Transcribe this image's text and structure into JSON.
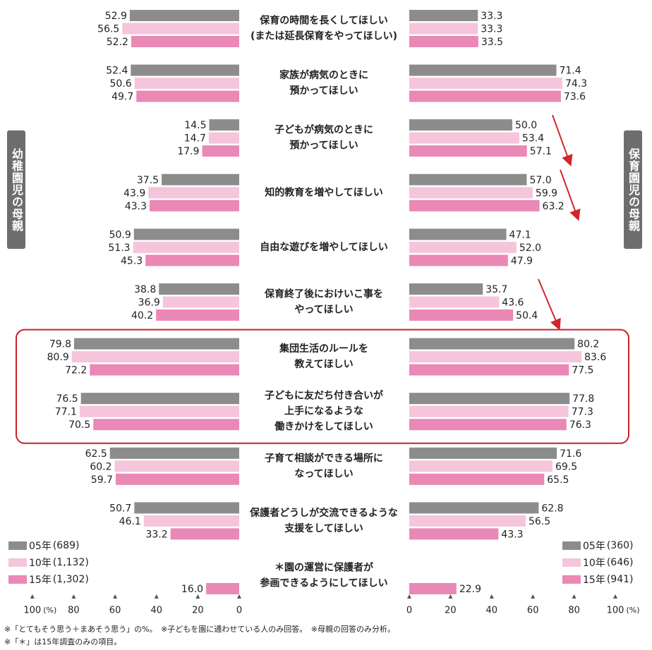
{
  "chart_data": {
    "type": "bar",
    "orientation": "horizontal",
    "layout": "back-to-back",
    "panels": [
      {
        "name": "幼稚園児の母親",
        "side": "left"
      },
      {
        "name": "保育園児の母親",
        "side": "right"
      }
    ],
    "series_names": [
      "05年",
      "10年",
      "15年"
    ],
    "colors": {
      "05年": "#8c8c8c",
      "10年": "#f5c5dc",
      "15年": "#ea88b6"
    },
    "categories": [
      {
        "label": [
          "保育の時間を長くしてほしい",
          "(または延長保育をやってほしい)"
        ],
        "left": [
          "52.9",
          "56.5",
          "52.2"
        ],
        "right": [
          "33.3",
          "33.3",
          "33.5"
        ]
      },
      {
        "label": [
          "家族が病気のときに",
          "預かってほしい"
        ],
        "left": [
          "52.4",
          "50.6",
          "49.7"
        ],
        "right": [
          "71.4",
          "74.3",
          "73.6"
        ]
      },
      {
        "label": [
          "子どもが病気のときに",
          "預かってほしい"
        ],
        "left": [
          "14.5",
          "14.7",
          "17.9"
        ],
        "right": [
          "50.0",
          "53.4",
          "57.1"
        ]
      },
      {
        "label": [
          "知的教育を増やしてほしい"
        ],
        "left": [
          "37.5",
          "43.9",
          "43.3"
        ],
        "right": [
          "57.0",
          "59.9",
          "63.2"
        ]
      },
      {
        "label": [
          "自由な遊びを増やしてほしい"
        ],
        "left": [
          "50.9",
          "51.3",
          "45.3"
        ],
        "right": [
          "47.1",
          "52.0",
          "47.9"
        ]
      },
      {
        "label": [
          "保育終了後におけいこ事を",
          "やってほしい"
        ],
        "left": [
          "38.8",
          "36.9",
          "40.2"
        ],
        "right": [
          "35.7",
          "43.6",
          "50.4"
        ]
      },
      {
        "label": [
          "集団生活のルールを",
          "教えてほしい"
        ],
        "left": [
          "79.8",
          "80.9",
          "72.2"
        ],
        "right": [
          "80.2",
          "83.6",
          "77.5"
        ]
      },
      {
        "label": [
          "子どもに友だち付き合いが",
          "上手になるような",
          "働きかけをしてほしい"
        ],
        "left": [
          "76.5",
          "77.1",
          "70.5"
        ],
        "right": [
          "77.8",
          "77.3",
          "76.3"
        ]
      },
      {
        "label": [
          "子育て相談ができる場所に",
          "なってほしい"
        ],
        "left": [
          "62.5",
          "60.2",
          "59.7"
        ],
        "right": [
          "71.6",
          "69.5",
          "65.5"
        ]
      },
      {
        "label": [
          "保護者どうしが交流できるような",
          "支援をしてほしい"
        ],
        "left": [
          "50.7",
          "46.1",
          "33.2"
        ],
        "right": [
          "62.8",
          "56.5",
          "43.3"
        ]
      },
      {
        "label": [
          "＊園の運営に保護者が",
          "参画できるようにしてほしい"
        ],
        "left": [
          null,
          null,
          "16.0"
        ],
        "right": [
          null,
          null,
          "22.9"
        ]
      }
    ],
    "left_axis": {
      "ticks": [
        "100",
        "80",
        "60",
        "40",
        "20",
        "0"
      ],
      "unit": "(%)",
      "range": [
        100,
        0
      ]
    },
    "right_axis": {
      "ticks": [
        "0",
        "20",
        "40",
        "60",
        "80",
        "100"
      ],
      "unit": "(%)",
      "range": [
        0,
        100
      ]
    },
    "highlight_box_categories": [
      "集団生活のルールを教えてほしい",
      "子どもに友だち付き合いが上手になるような働きかけをしてほしい"
    ],
    "trend_arrow_categories": [
      "子どもが病気のときに預かってほしい",
      "知的教育を増やしてほしい",
      "保育終了後におけいこ事をやってほしい"
    ],
    "highlight_color": "#c8202a",
    "arrow_color": "#d0252b",
    "grid": false
  },
  "side_labels": {
    "left": "幼稚園児の母親",
    "right": "保育園児の母親"
  },
  "legend_left": [
    {
      "series": "05年",
      "n": "(689)"
    },
    {
      "series": "10年",
      "n": "(1,132)"
    },
    {
      "series": "15年",
      "n": "(1,302)"
    }
  ],
  "legend_right": [
    {
      "series": "05年",
      "n": "(360)"
    },
    {
      "series": "10年",
      "n": "(646)"
    },
    {
      "series": "15年",
      "n": "(941)"
    }
  ],
  "footnotes": [
    "※「とてもそう思う＋まあそう思う」の%。　※子どもを園に通わせている人のみ回答。　※母親の回答のみ分析。",
    "※「＊」は15年調査のみの項目。"
  ]
}
